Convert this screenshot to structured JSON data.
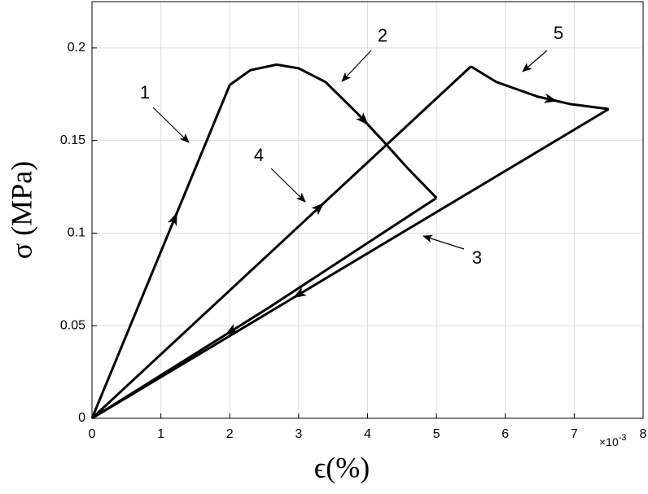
{
  "chart_data": {
    "type": "line",
    "x_label": "ϵ(%)",
    "y_label": "σ (MPa)",
    "x_multiplier": {
      "base": "×10",
      "exponent": "-3"
    },
    "xlim": [
      0,
      8
    ],
    "xticks": [
      0,
      1,
      2,
      3,
      4,
      5,
      6,
      7,
      8
    ],
    "ylim": [
      0,
      0.225
    ],
    "yticks": [
      0,
      0.05,
      0.1,
      0.15,
      0.2
    ],
    "grid": true,
    "series": [
      {
        "color": "#000000",
        "x": [
          0,
          2
        ],
        "values": [
          0,
          0.18
        ]
      },
      {
        "color": "#000000",
        "x": [
          2,
          2.3,
          2.68,
          3.0,
          3.39,
          3.87,
          4.22,
          4.57,
          5
        ],
        "values": [
          0.18,
          0.188,
          0.191,
          0.189,
          0.1816,
          0.164,
          0.15,
          0.1355,
          0.119
        ]
      },
      {
        "color": "#000000",
        "x": [
          5,
          2.56,
          0
        ],
        "values": [
          0.119,
          0.0596,
          0
        ]
      },
      {
        "color": "#000000",
        "x": [
          0,
          5.5
        ],
        "values": [
          0,
          0.19
        ]
      },
      {
        "color": "#000000",
        "x": [
          5.5,
          5.87,
          6.47,
          6.94,
          7.5
        ],
        "values": [
          0.19,
          0.1816,
          0.1737,
          0.1697,
          0.167
        ]
      },
      {
        "color": "#000000",
        "x": [
          7.5,
          0
        ],
        "values": [
          0.167,
          0
        ]
      }
    ],
    "annotations": [
      "1",
      "2",
      "3",
      "4",
      "5"
    ]
  }
}
